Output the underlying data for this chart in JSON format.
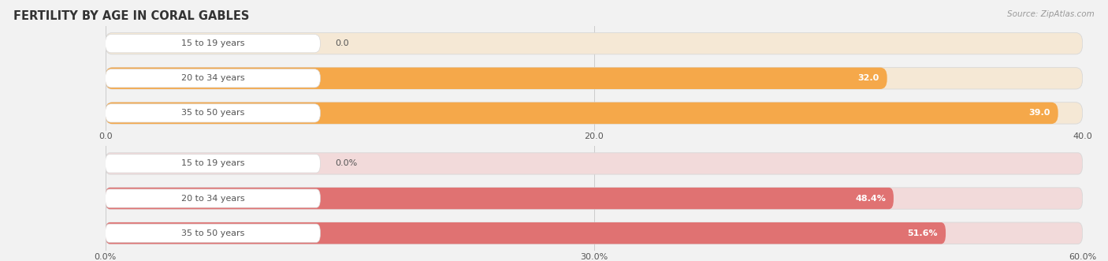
{
  "title": "FERTILITY BY AGE IN CORAL GABLES",
  "source": "Source: ZipAtlas.com",
  "top_chart": {
    "categories": [
      "15 to 19 years",
      "20 to 34 years",
      "35 to 50 years"
    ],
    "values": [
      0.0,
      32.0,
      39.0
    ],
    "xlim": [
      0,
      40
    ],
    "xticks": [
      0.0,
      20.0,
      40.0
    ],
    "xtick_labels": [
      "0.0",
      "20.0",
      "40.0"
    ],
    "bar_color": "#F5A84A",
    "bar_bg_color": "#F5E8D5",
    "value_labels": [
      "0.0",
      "32.0",
      "39.0"
    ],
    "value_label_threshold": 1.0
  },
  "bottom_chart": {
    "categories": [
      "15 to 19 years",
      "20 to 34 years",
      "35 to 50 years"
    ],
    "values": [
      0.0,
      48.4,
      51.6
    ],
    "xlim": [
      0,
      60
    ],
    "xticks": [
      0.0,
      30.0,
      60.0
    ],
    "xtick_labels": [
      "0.0%",
      "30.0%",
      "60.0%"
    ],
    "bar_color": "#E07272",
    "bar_bg_color": "#F2DADA",
    "value_labels": [
      "0.0%",
      "48.4%",
      "51.6%"
    ],
    "value_label_threshold": 1.0
  },
  "bg_color": "#f2f2f2",
  "label_bg_color": "#ffffff",
  "label_color": "#555555",
  "title_color": "#333333",
  "title_fontsize": 10.5,
  "label_fontsize": 8,
  "tick_fontsize": 8,
  "source_fontsize": 7.5,
  "value_fontsize": 8,
  "bar_height": 0.62,
  "bar_gap": 0.18
}
